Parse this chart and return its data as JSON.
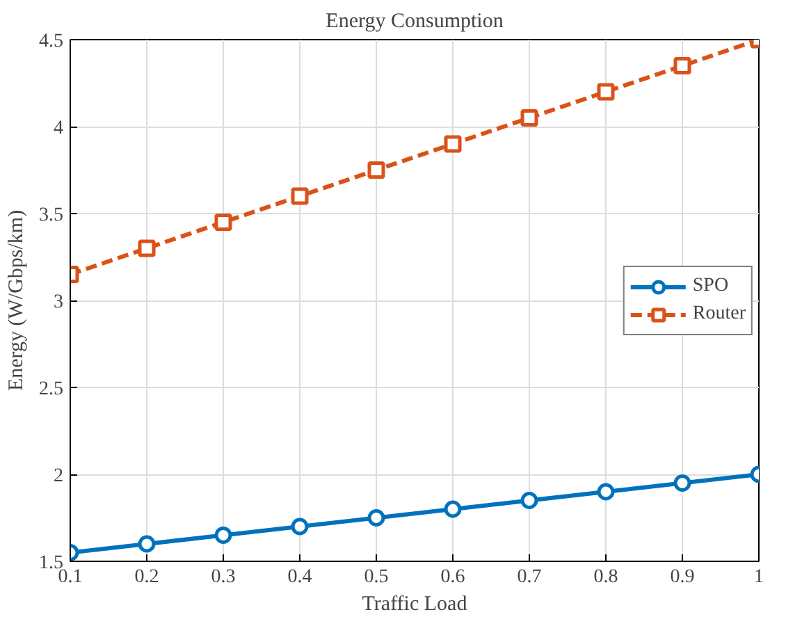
{
  "chart_data": {
    "type": "line",
    "title": "Energy Consumption",
    "xlabel": "Traffic Load",
    "ylabel": "Energy (W/Gbps/km)",
    "x": [
      0.1,
      0.2,
      0.3,
      0.4,
      0.5,
      0.6,
      0.7,
      0.8,
      0.9,
      1
    ],
    "series": [
      {
        "name": "SPO",
        "color": "#0072bd",
        "marker": "circle",
        "line_style": "solid",
        "values": [
          1.55,
          1.6,
          1.65,
          1.7,
          1.75,
          1.8,
          1.85,
          1.9,
          1.95,
          2.0
        ]
      },
      {
        "name": "Router",
        "color": "#d95319",
        "marker": "square",
        "line_style": "dashed",
        "values": [
          3.15,
          3.3,
          3.45,
          3.6,
          3.75,
          3.9,
          4.05,
          4.2,
          4.35,
          4.5
        ]
      }
    ],
    "xlim": [
      0.1,
      1
    ],
    "ylim": [
      1.5,
      4.5
    ],
    "xticks": [
      0.1,
      0.2,
      0.3,
      0.4,
      0.5,
      0.6,
      0.7,
      0.8,
      0.9,
      1
    ],
    "yticks": [
      1.5,
      2,
      2.5,
      3,
      3.5,
      4,
      4.5
    ],
    "grid": true,
    "legend": "right"
  }
}
